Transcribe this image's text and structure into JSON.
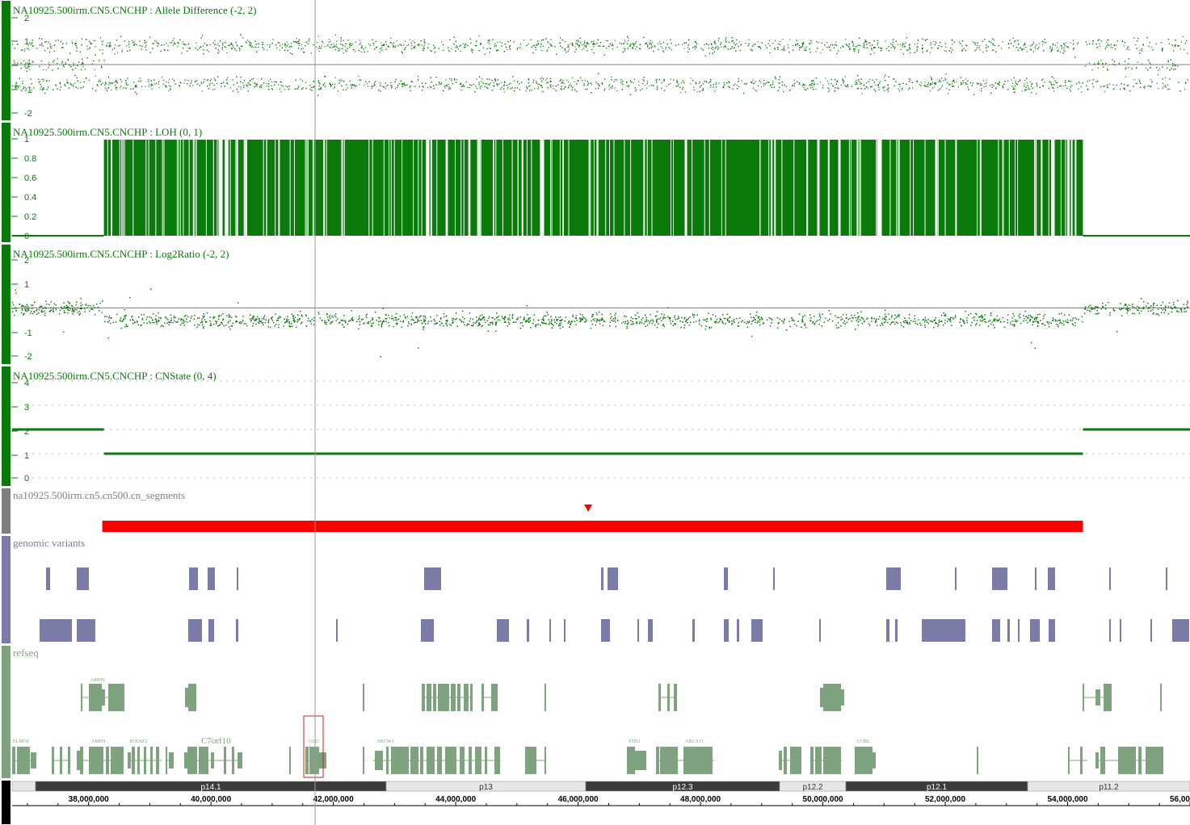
{
  "colors": {
    "data_green": "#0a7a0a",
    "segment_red": "#ff0000",
    "variant_purple": "#7b7ba8",
    "refseq_green": "#7fa37f",
    "band_dark": "#3c3c3c",
    "band_light": "#e6e6e6"
  },
  "tracks": [
    {
      "label": "NA10925.500irm.CN5.CNCHP : Allele Difference (-2, 2)",
      "ticks": [
        "2",
        "1",
        "0",
        "-1",
        "-2"
      ]
    },
    {
      "label": "NA10925.500irm.CN5.CNCHP : LOH (0, 1)",
      "ticks": [
        "1",
        "0.8",
        "0.6",
        "0.4",
        "0.2",
        "0"
      ]
    },
    {
      "label": "NA10925.500irm.CN5.CNCHP : Log2Ratio (-2, 2)",
      "ticks": [
        "2",
        "1",
        "0",
        "-1",
        "-2"
      ]
    },
    {
      "label": "NA10925.500irm.CN5.CNCHP : CNState (0, 4)",
      "ticks": [
        "4",
        "3",
        "2",
        "1",
        "0"
      ]
    },
    {
      "label": "na10925.500irm.cn5.cn500.cn_segments"
    },
    {
      "label": "genomic variants"
    },
    {
      "label": "refseq"
    }
  ],
  "gene_labels": [
    "ELMO1",
    "AMPH",
    "AMPH",
    "POU6F2",
    "C7orf10",
    "GLI3",
    "HECW1",
    "TNS3",
    "ABCA13",
    "COBL"
  ],
  "cytobands": [
    "p14.1",
    "p13",
    "p12.3",
    "p12.2",
    "p12.1",
    "p11.2"
  ],
  "axis": {
    "ticks": [
      "38,000,000",
      "40,000,000",
      "42,000,000",
      "44,000,000",
      "46,000,000",
      "48,000,000",
      "50,000,000",
      "52,000,000",
      "54,000,000",
      "56,000,000"
    ]
  },
  "chart_data": [
    {
      "type": "scatter",
      "title": "NA10925.500irm.CN5.CNCHP : Allele Difference (-2, 2)",
      "x_unit": "bp",
      "xlim": [
        36750000,
        56000000
      ],
      "ylim": [
        -2,
        2
      ],
      "x_range_shown": [
        36750000,
        56000000
      ],
      "y_bands": [
        -1,
        1
      ]
    },
    {
      "type": "bar",
      "title": "NA10925.500irm.CN5.CNCHP : LOH (0, 1)",
      "ylim": [
        0,
        1
      ],
      "loh_region": [
        38250000,
        54250000
      ],
      "loh_value": 1,
      "outside_value": 0
    },
    {
      "type": "scatter",
      "title": "NA10925.500irm.CN5.CNCHP : Log2Ratio (-2, 2)",
      "ylim": [
        -2,
        2
      ],
      "segments": [
        {
          "x": [
            36750000,
            38250000
          ],
          "y": 0
        },
        {
          "x": [
            38250000,
            54250000
          ],
          "y": -0.35
        },
        {
          "x": [
            54250000,
            56000000
          ],
          "y": 0
        }
      ]
    },
    {
      "type": "line",
      "title": "NA10925.500irm.CN5.CNCHP : CNState (0, 4)",
      "ylim": [
        0,
        4
      ],
      "segments": [
        {
          "x": [
            36750000,
            38250000
          ],
          "y": 2
        },
        {
          "x": [
            38250000,
            54250000
          ],
          "y": 1
        },
        {
          "x": [
            54250000,
            56000000
          ],
          "y": 2
        }
      ]
    },
    {
      "type": "bar",
      "title": "na10925.500irm.cn5.cn500.cn_segments",
      "segments": [
        {
          "x": [
            38250000,
            54250000
          ]
        }
      ]
    }
  ]
}
